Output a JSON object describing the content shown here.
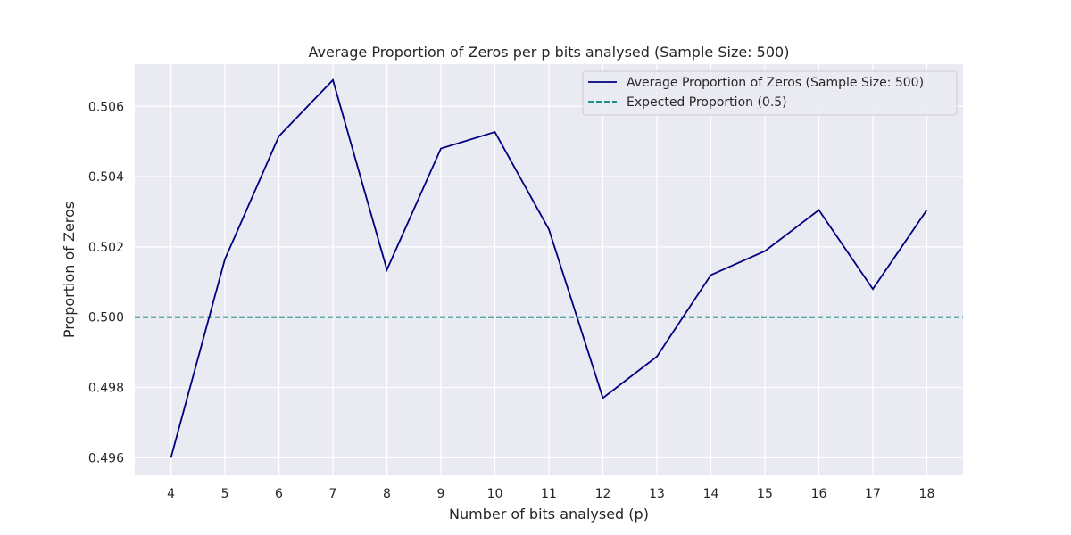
{
  "chart_data": {
    "type": "line",
    "title": "Average Proportion of Zeros per p bits analysed (Sample Size: 500)",
    "xlabel": "Number of bits analysed (p)",
    "ylabel": "Proportion of Zeros",
    "x": [
      4,
      5,
      6,
      7,
      8,
      9,
      10,
      11,
      12,
      13,
      14,
      15,
      16,
      17,
      18
    ],
    "xlim": [
      3.33,
      18.67
    ],
    "ylim": [
      0.4955,
      0.5072
    ],
    "x_ticks": [
      "4",
      "5",
      "6",
      "7",
      "8",
      "9",
      "10",
      "11",
      "12",
      "13",
      "14",
      "15",
      "16",
      "17",
      "18"
    ],
    "y_ticks": [
      0.496,
      0.498,
      0.5,
      0.502,
      0.504,
      0.506
    ],
    "y_tick_labels": [
      "0.496",
      "0.498",
      "0.500",
      "0.502",
      "0.504",
      "0.506"
    ],
    "grid": true,
    "legend_position": "top-right",
    "series": [
      {
        "name": "Average Proportion of Zeros (Sample Size: 500)",
        "color": "#00007f",
        "style": "solid",
        "values": [
          0.496,
          0.50165,
          0.50515,
          0.50675,
          0.50135,
          0.5048,
          0.50527,
          0.5025,
          0.4977,
          0.49888,
          0.5012,
          0.50188,
          0.50305,
          0.5008,
          0.50305
        ]
      }
    ],
    "reference_line": {
      "name": "Expected Proportion (0.5)",
      "y": 0.5,
      "color": "#008080",
      "style": "dashed"
    },
    "colors": {
      "plot_background": "#eaeaf2",
      "grid": "#ffffff",
      "text": "#262626"
    }
  }
}
